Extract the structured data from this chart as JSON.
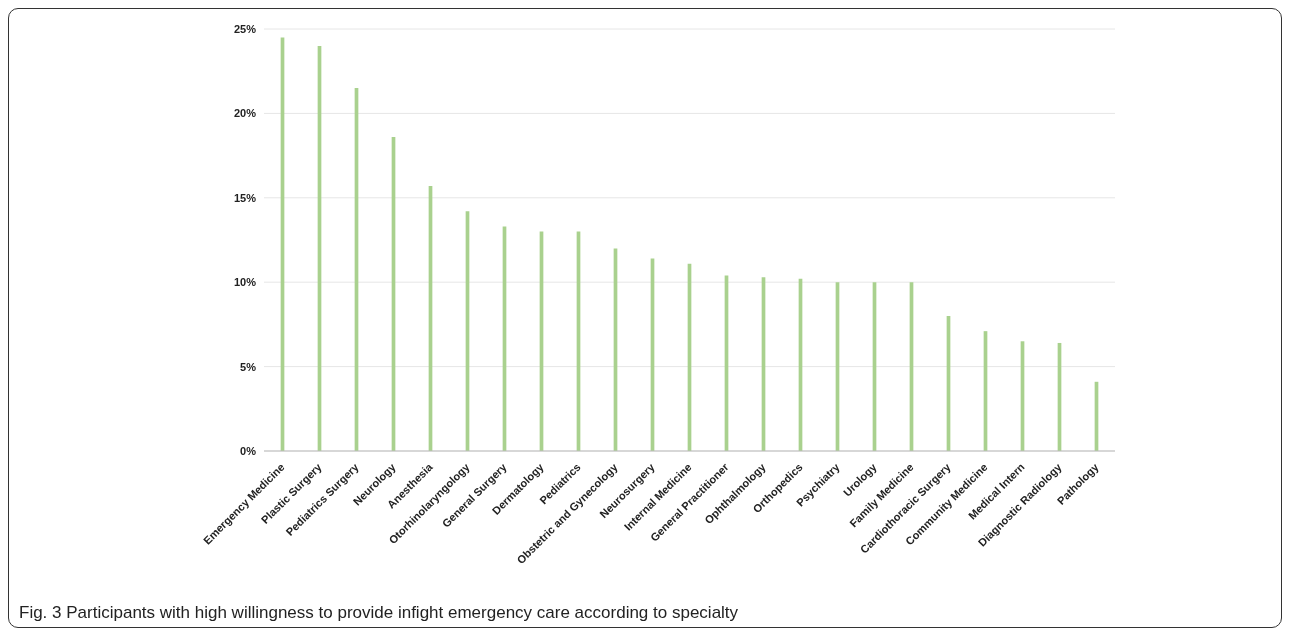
{
  "chart_data": {
    "type": "bar",
    "categories": [
      "Emergency Medicine",
      "Plastic Surgery",
      "Pediatrics Surgery",
      "Neurology",
      "Anesthesia",
      "Otorhinolaryngology",
      "General Surgery",
      "Dermatology",
      "Pediatrics",
      "Obstetric and Gynecology",
      "Neurosurgery",
      "Internal Medicine",
      "General Practitioner",
      "Ophthalmology",
      "Orthopedics",
      "Psychiatry",
      "Urology",
      "Family Medicine",
      "Cardiothoracic Surgery",
      "Community Medicine",
      "Medical Intern",
      "Diagnostic Radiology",
      "Pathology"
    ],
    "values": [
      24.5,
      24.0,
      21.5,
      18.6,
      15.7,
      14.2,
      13.3,
      13.0,
      13.0,
      12.0,
      11.4,
      11.1,
      10.4,
      10.3,
      10.2,
      10.0,
      10.0,
      10.0,
      8.0,
      7.1,
      6.5,
      6.4,
      4.1
    ],
    "color": "#a9d18e",
    "ylim": [
      0,
      25
    ],
    "yticks": [
      {
        "value": 0,
        "label": "0%"
      },
      {
        "value": 5,
        "label": "5%"
      },
      {
        "value": 10,
        "label": "10%"
      },
      {
        "value": 15,
        "label": "15%"
      },
      {
        "value": 20,
        "label": "20%"
      },
      {
        "value": 25,
        "label": "25%"
      }
    ],
    "grid": "y",
    "annotations": [
      "Fig. 3 Participants with high willingness to provide infight emergency care according to specialty"
    ]
  }
}
